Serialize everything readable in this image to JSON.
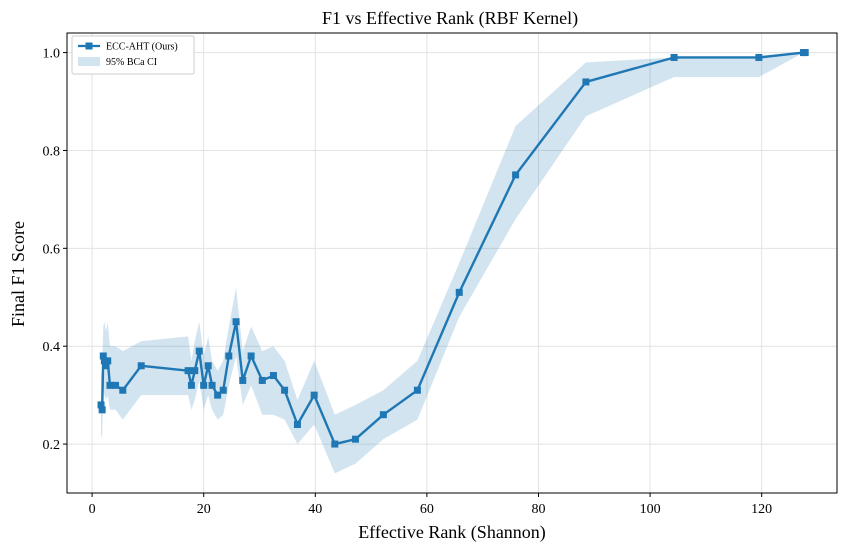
{
  "chart_data": {
    "type": "line",
    "title": "F1 vs Effective Rank (RBF Kernel)",
    "xlabel": "Effective Rank (Shannon)",
    "ylabel": "Final F1 Score",
    "xlim": [
      -4.5,
      133.5
    ],
    "ylim": [
      0.1,
      1.04
    ],
    "xticks": [
      0,
      20,
      40,
      60,
      80,
      100,
      120
    ],
    "yticks": [
      0.2,
      0.4,
      0.6,
      0.8,
      1.0
    ],
    "xtick_labels": [
      "0",
      "20",
      "40",
      "60",
      "80",
      "100",
      "120"
    ],
    "ytick_labels": [
      "0.2",
      "0.4",
      "0.6",
      "0.8",
      "1.0"
    ],
    "grid": true,
    "legend_position": "top-left",
    "legend": {
      "line_label": "ECC-AHT (Ours)",
      "band_label": "95% BCa CI"
    },
    "colors": {
      "line": "#1f77b4",
      "band": "#1f77b4",
      "grid": "#e3e3e3"
    },
    "series": [
      {
        "name": "ECC-AHT (Ours)",
        "x": [
          1.6,
          1.8,
          2.0,
          2.2,
          2.5,
          2.8,
          3.2,
          4.2,
          5.5,
          8.8,
          17.2,
          17.8,
          18.4,
          19.2,
          20.0,
          20.8,
          21.5,
          22.5,
          23.5,
          24.5,
          25.8,
          27.0,
          28.5,
          30.5,
          32.5,
          34.5,
          36.8,
          39.8,
          43.5,
          47.2,
          52.2,
          58.3,
          65.8,
          75.9,
          88.5,
          104.3,
          119.5,
          127.5,
          127.8
        ],
        "y": [
          0.28,
          0.27,
          0.38,
          0.37,
          0.36,
          0.37,
          0.32,
          0.32,
          0.31,
          0.36,
          0.35,
          0.32,
          0.35,
          0.39,
          0.32,
          0.36,
          0.32,
          0.3,
          0.31,
          0.38,
          0.45,
          0.33,
          0.38,
          0.33,
          0.34,
          0.31,
          0.24,
          0.3,
          0.2,
          0.21,
          0.26,
          0.31,
          0.51,
          0.75,
          0.94,
          0.99,
          0.99,
          1.0,
          1.0
        ],
        "ci_lower": [
          0.22,
          0.21,
          0.31,
          0.3,
          0.29,
          0.3,
          0.27,
          0.27,
          0.25,
          0.3,
          0.3,
          0.27,
          0.29,
          0.33,
          0.27,
          0.3,
          0.27,
          0.25,
          0.26,
          0.32,
          0.38,
          0.28,
          0.32,
          0.26,
          0.26,
          0.25,
          0.2,
          0.24,
          0.14,
          0.16,
          0.21,
          0.25,
          0.46,
          0.66,
          0.87,
          0.95,
          0.95,
          1.0,
          1.0
        ],
        "ci_upper": [
          0.34,
          0.36,
          0.44,
          0.45,
          0.43,
          0.45,
          0.4,
          0.4,
          0.39,
          0.41,
          0.42,
          0.37,
          0.41,
          0.45,
          0.38,
          0.42,
          0.37,
          0.35,
          0.37,
          0.44,
          0.52,
          0.39,
          0.44,
          0.39,
          0.4,
          0.37,
          0.29,
          0.37,
          0.26,
          0.28,
          0.31,
          0.37,
          0.57,
          0.85,
          0.98,
          0.99,
          0.99,
          1.0,
          1.0
        ]
      }
    ]
  }
}
